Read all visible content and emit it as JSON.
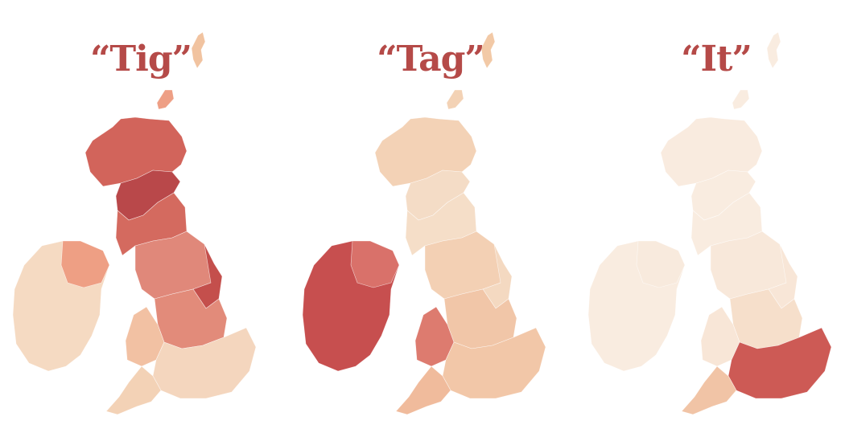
{
  "panels": [
    {
      "title": "“Tig”",
      "regions": {
        "shetland": "#f1c3a0",
        "orkney": "#ee9f85",
        "highlands": "#d2645b",
        "central_scotland": "#b9484a",
        "southern_scotland": "#d46a5f",
        "n_ireland": "#ee9f84",
        "ireland": "#f5dac2",
        "n_england": "#e0887a",
        "ne_england": "#c44f4c",
        "midlands": "#e28b7a",
        "wales": "#f2c1a3",
        "s_england": "#f4d6be",
        "sw_england": "#f3d2b6"
      }
    },
    {
      "title": "“Tag”",
      "regions": {
        "shetland": "#f2c9a6",
        "orkney": "#f3d2b5",
        "highlands": "#f3d2b6",
        "central_scotland": "#f4dcc6",
        "southern_scotland": "#f5dec8",
        "n_ireland": "#d9716a",
        "ireland": "#c74f4f",
        "n_england": "#f3d0b4",
        "ne_england": "#f4d9c1",
        "midlands": "#f1c6a8",
        "wales": "#dd7b6f",
        "s_england": "#f2c7a8",
        "sw_england": "#f0bb9c"
      }
    },
    {
      "title": "“It”",
      "regions": {
        "shetland": "#f9ece0",
        "orkney": "#f9ece0",
        "highlands": "#f9ebdf",
        "central_scotland": "#f9ece0",
        "southern_scotland": "#f9ece0",
        "n_ireland": "#f8eadd",
        "ireland": "#f9ece0",
        "n_england": "#f8e8da",
        "ne_england": "#f8e6d7",
        "midlands": "#f6dfcb",
        "wales": "#f8e6d7",
        "s_england": "#cd5a55",
        "sw_england": "#f1c4a6"
      }
    }
  ]
}
